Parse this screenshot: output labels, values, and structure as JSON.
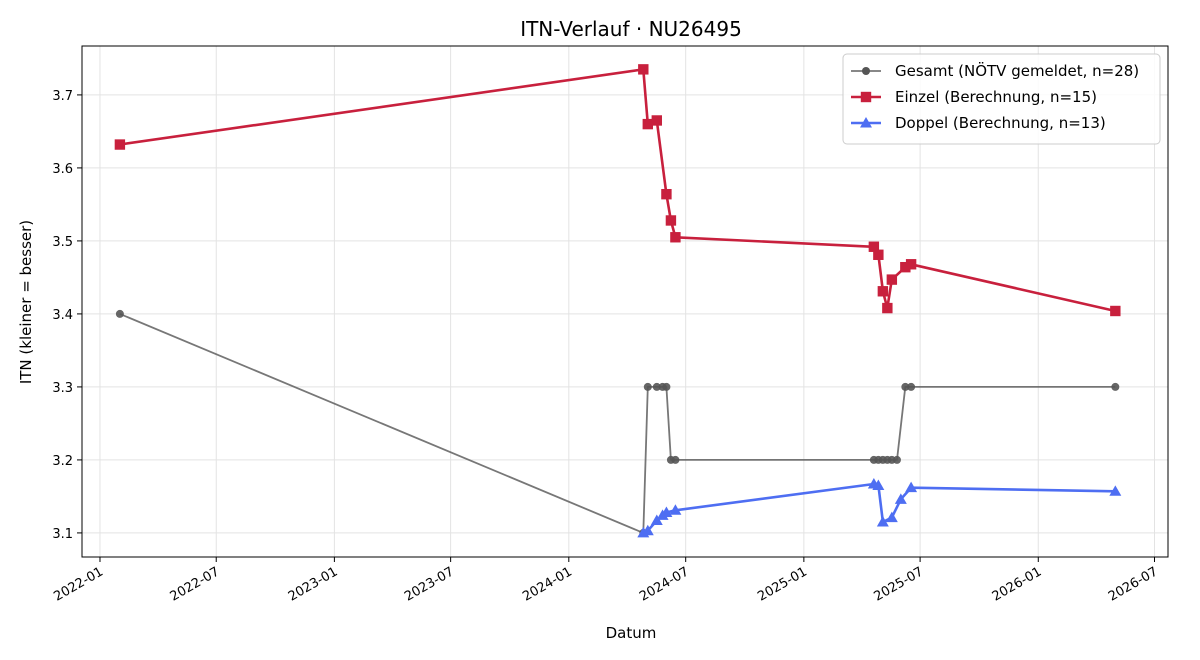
{
  "chart_data": {
    "type": "line",
    "title": "ITN-Verlauf · NU26495",
    "xlabel": "Datum",
    "ylabel": "ITN  (kleiner = besser)",
    "x_axis": {
      "kind": "date",
      "range": [
        "2021-12-04",
        "2026-07-22"
      ],
      "ticks": [
        "2022-01",
        "2022-07",
        "2023-01",
        "2023-07",
        "2024-01",
        "2024-07",
        "2025-01",
        "2025-07",
        "2026-01",
        "2026-07"
      ]
    },
    "y_axis": {
      "range": [
        3.067,
        3.767
      ],
      "ticks": [
        "3.1",
        "3.2",
        "3.3",
        "3.4",
        "3.5",
        "3.6",
        "3.7"
      ]
    },
    "grid": true,
    "legend_position": "top-right",
    "series": [
      {
        "name": "Gesamt (NÖTV gemeldet, n=28)",
        "color": "#555555",
        "marker": "circle",
        "points": [
          [
            "2022-02-01",
            3.4
          ],
          [
            "2024-04-26",
            3.1
          ],
          [
            "2024-05-03",
            3.3
          ],
          [
            "2024-05-17",
            3.3
          ],
          [
            "2024-05-26",
            3.3
          ],
          [
            "2024-06-01",
            3.3
          ],
          [
            "2024-06-08",
            3.2
          ],
          [
            "2024-06-15",
            3.2
          ],
          [
            "2025-04-20",
            3.2
          ],
          [
            "2025-04-27",
            3.2
          ],
          [
            "2025-05-04",
            3.2
          ],
          [
            "2025-05-11",
            3.2
          ],
          [
            "2025-05-18",
            3.2
          ],
          [
            "2025-05-26",
            3.2
          ],
          [
            "2025-06-08",
            3.3
          ],
          [
            "2025-06-17",
            3.3
          ],
          [
            "2026-05-01",
            3.3
          ]
        ]
      },
      {
        "name": "Einzel (Berechnung, n=15)",
        "color": "#c8203d",
        "marker": "square",
        "points": [
          [
            "2022-02-01",
            3.632
          ],
          [
            "2024-04-26",
            3.735
          ],
          [
            "2024-05-03",
            3.66
          ],
          [
            "2024-05-17",
            3.665
          ],
          [
            "2024-06-01",
            3.564
          ],
          [
            "2024-06-08",
            3.528
          ],
          [
            "2024-06-15",
            3.505
          ],
          [
            "2025-04-20",
            3.492
          ],
          [
            "2025-04-27",
            3.481
          ],
          [
            "2025-05-04",
            3.431
          ],
          [
            "2025-05-11",
            3.408
          ],
          [
            "2025-05-18",
            3.447
          ],
          [
            "2025-06-08",
            3.464
          ],
          [
            "2025-06-17",
            3.468
          ],
          [
            "2026-05-01",
            3.404
          ]
        ]
      },
      {
        "name": "Doppel (Berechnung, n=13)",
        "color": "#4e6ef2",
        "marker": "triangle",
        "points": [
          [
            "2024-04-26",
            3.1
          ],
          [
            "2024-05-03",
            3.103
          ],
          [
            "2024-05-17",
            3.117
          ],
          [
            "2024-05-26",
            3.124
          ],
          [
            "2024-06-01",
            3.128
          ],
          [
            "2024-06-15",
            3.131
          ],
          [
            "2025-04-20",
            3.167
          ],
          [
            "2025-04-27",
            3.165
          ],
          [
            "2025-05-04",
            3.115
          ],
          [
            "2025-05-18",
            3.121
          ],
          [
            "2025-06-01",
            3.146
          ],
          [
            "2025-06-17",
            3.162
          ],
          [
            "2026-05-01",
            3.157
          ]
        ]
      }
    ]
  }
}
